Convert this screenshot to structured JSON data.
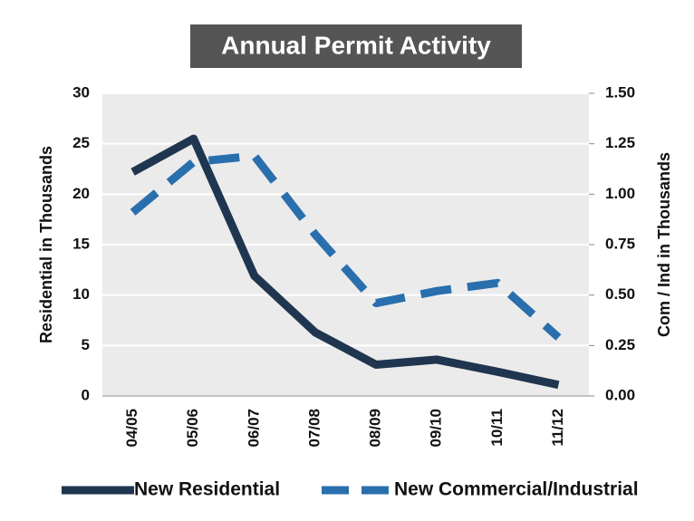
{
  "chart_data": {
    "type": "line",
    "title": "Annual Permit Activity",
    "ylabel": "Residential in Thousands",
    "y2label": "Com / Ind in Thousands",
    "categories": [
      "04/05",
      "05/06",
      "06/07",
      "07/08",
      "08/09",
      "09/10",
      "10/11",
      "11/12"
    ],
    "series": [
      {
        "name": "New Residential",
        "color": "#1f3550",
        "values": [
          22.2,
          25.5,
          11.9,
          6.3,
          3.1,
          3.6,
          2.4,
          1.1
        ]
      },
      {
        "name": "New Commercial/Industrial",
        "color": "#2a6fad",
        "axis": "y2",
        "dashed": true,
        "values": [
          0.91,
          1.16,
          1.19,
          0.8,
          0.46,
          0.52,
          0.56,
          0.29
        ]
      }
    ],
    "ylim": [
      0,
      30
    ],
    "yticks": [
      0,
      5,
      10,
      15,
      20,
      25,
      30
    ],
    "y2lim": [
      0,
      1.5
    ],
    "y2ticks": [
      {
        "value": 0,
        "label": "0.00"
      },
      {
        "value": 0.25,
        "label": "0.25"
      },
      {
        "value": 0.5,
        "label": "0.50"
      },
      {
        "value": 0.75,
        "label": "0.75"
      },
      {
        "value": 1,
        "label": "1.00"
      },
      {
        "value": 1.25,
        "label": "1.25"
      },
      {
        "value": 1.5,
        "label": "1.50"
      }
    ],
    "grid": true
  }
}
